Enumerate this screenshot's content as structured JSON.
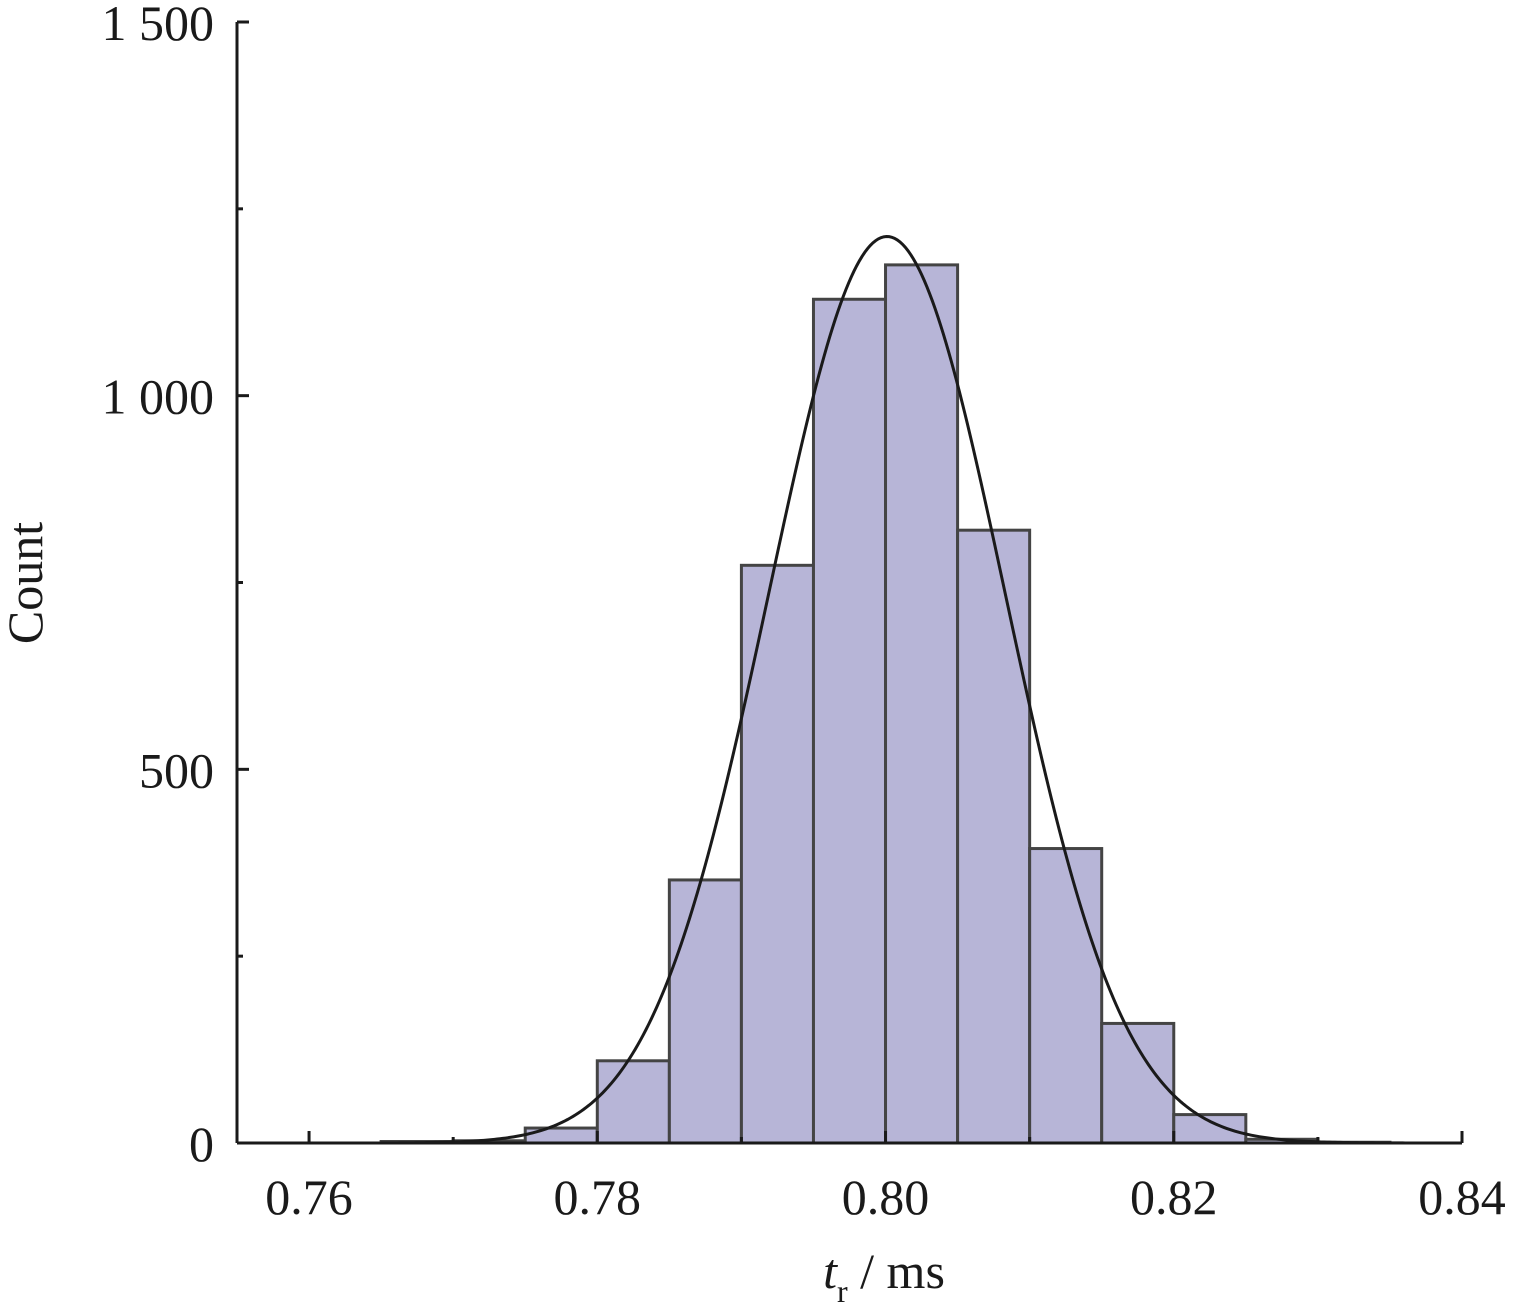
{
  "chart_data": {
    "type": "bar",
    "subtype": "histogram",
    "ylabel": "Count",
    "xlabel": {
      "var": "t",
      "sub": "r",
      "rest": " / ms"
    },
    "xlim": [
      0.755,
      0.84
    ],
    "ylim": [
      0,
      1500
    ],
    "x_ticks": [
      0.76,
      0.78,
      0.8,
      0.82,
      0.84
    ],
    "x_tick_labels": [
      "0.76",
      "0.78",
      "0.80",
      "0.82",
      "0.84"
    ],
    "x_minor_ticks": [
      0.77,
      0.79,
      0.81,
      0.83
    ],
    "y_ticks": [
      0,
      500,
      1000,
      1500
    ],
    "y_tick_labels": [
      "0",
      "500",
      "1 000",
      "1 500"
    ],
    "y_minor_ticks": [
      250,
      750,
      1250
    ],
    "bin_width": 0.005,
    "bins": [
      {
        "x0": 0.765,
        "value": 2
      },
      {
        "x0": 0.77,
        "value": 3
      },
      {
        "x0": 0.775,
        "value": 20
      },
      {
        "x0": 0.78,
        "value": 110
      },
      {
        "x0": 0.785,
        "value": 352
      },
      {
        "x0": 0.79,
        "value": 773
      },
      {
        "x0": 0.795,
        "value": 1129
      },
      {
        "x0": 0.8,
        "value": 1175
      },
      {
        "x0": 0.805,
        "value": 820
      },
      {
        "x0": 0.81,
        "value": 394
      },
      {
        "x0": 0.815,
        "value": 160
      },
      {
        "x0": 0.82,
        "value": 38
      },
      {
        "x0": 0.825,
        "value": 5
      },
      {
        "x0": 0.83,
        "value": 1
      }
    ],
    "fit": {
      "type": "normal",
      "mean": 0.8001,
      "sigma": 0.0082,
      "peak": 1213
    },
    "colors": {
      "bar_fill": "#b7b5d7",
      "bar_edge": "#444444",
      "axis": "#1a1a1a",
      "curve": "#1a1a1a"
    },
    "grid": false,
    "legend": "none"
  }
}
